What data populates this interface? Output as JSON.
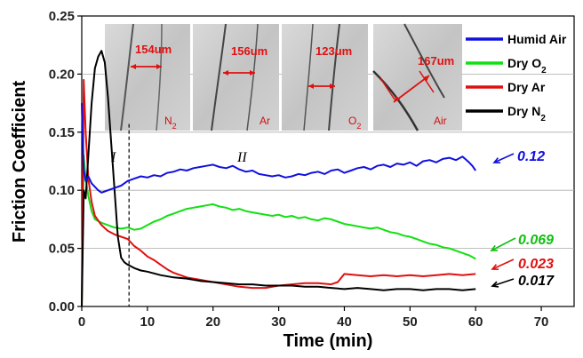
{
  "chart_data": {
    "type": "line",
    "xlabel": "Time (min)",
    "ylabel": "Friction Coefficient",
    "xlim": [
      0,
      75
    ],
    "ylim": [
      0,
      0.25
    ],
    "x_ticks": [
      "0",
      "10",
      "20",
      "30",
      "40",
      "50",
      "60",
      "70"
    ],
    "y_ticks": [
      "0.00",
      "0.05",
      "0.10",
      "0.15",
      "0.20",
      "0.25"
    ],
    "grid": "horizontal",
    "legend_position": "top-right",
    "series": [
      {
        "name": "Humid Air",
        "color": "#1010e0",
        "x": [
          0,
          0.3,
          0.6,
          1,
          1.5,
          2,
          2.5,
          3,
          3.5,
          4,
          5,
          6,
          7,
          8,
          9,
          10,
          11,
          12,
          13,
          14,
          15,
          16,
          17,
          18,
          19,
          20,
          21,
          22,
          23,
          24,
          25,
          26,
          27,
          28,
          29,
          30,
          31,
          32,
          33,
          34,
          35,
          36,
          37,
          38,
          39,
          40,
          41,
          42,
          43,
          44,
          45,
          46,
          47,
          48,
          49,
          50,
          51,
          52,
          53,
          54,
          55,
          56,
          57,
          58,
          59,
          59.5,
          60
        ],
        "values": [
          0.175,
          0.118,
          0.108,
          0.112,
          0.106,
          0.103,
          0.1,
          0.098,
          0.099,
          0.1,
          0.102,
          0.104,
          0.108,
          0.11,
          0.112,
          0.111,
          0.113,
          0.112,
          0.115,
          0.116,
          0.118,
          0.117,
          0.119,
          0.12,
          0.121,
          0.122,
          0.12,
          0.119,
          0.121,
          0.118,
          0.116,
          0.117,
          0.114,
          0.113,
          0.112,
          0.113,
          0.111,
          0.112,
          0.114,
          0.113,
          0.115,
          0.116,
          0.114,
          0.117,
          0.118,
          0.115,
          0.117,
          0.119,
          0.12,
          0.118,
          0.121,
          0.122,
          0.12,
          0.123,
          0.122,
          0.124,
          0.121,
          0.125,
          0.126,
          0.124,
          0.127,
          0.128,
          0.126,
          0.129,
          0.124,
          0.121,
          0.117
        ]
      },
      {
        "name": "Dry O2",
        "color": "#10e010",
        "x": [
          0,
          0.3,
          0.6,
          1,
          1.5,
          2,
          3,
          4,
          5,
          6,
          7,
          8,
          9,
          10,
          11,
          12,
          13,
          14,
          15,
          16,
          17,
          18,
          19,
          20,
          21,
          22,
          23,
          24,
          25,
          26,
          27,
          28,
          29,
          30,
          31,
          32,
          33,
          34,
          35,
          36,
          37,
          38,
          39,
          40,
          41,
          42,
          43,
          44,
          45,
          46,
          47,
          48,
          49,
          50,
          51,
          52,
          53,
          54,
          55,
          56,
          57,
          58,
          59,
          60
        ],
        "values": [
          0.0,
          0.13,
          0.11,
          0.095,
          0.082,
          0.075,
          0.072,
          0.07,
          0.068,
          0.067,
          0.068,
          0.066,
          0.067,
          0.07,
          0.073,
          0.075,
          0.078,
          0.08,
          0.082,
          0.084,
          0.085,
          0.086,
          0.087,
          0.088,
          0.086,
          0.085,
          0.083,
          0.084,
          0.082,
          0.081,
          0.08,
          0.079,
          0.078,
          0.079,
          0.077,
          0.078,
          0.076,
          0.077,
          0.075,
          0.074,
          0.076,
          0.075,
          0.073,
          0.071,
          0.07,
          0.069,
          0.068,
          0.067,
          0.068,
          0.066,
          0.064,
          0.063,
          0.061,
          0.06,
          0.058,
          0.056,
          0.054,
          0.053,
          0.051,
          0.05,
          0.048,
          0.046,
          0.044,
          0.041
        ]
      },
      {
        "name": "Dry Ar",
        "color": "#e01010",
        "x": [
          0,
          0.3,
          0.6,
          1,
          1.5,
          2,
          3,
          4,
          5,
          6,
          7,
          8,
          9,
          10,
          11,
          12,
          13,
          14,
          15,
          16,
          17,
          18,
          19,
          20,
          22,
          24,
          26,
          28,
          30,
          32,
          34,
          36,
          38,
          39,
          40,
          42,
          44,
          46,
          48,
          50,
          52,
          54,
          56,
          58,
          60
        ],
        "values": [
          0.0,
          0.195,
          0.15,
          0.11,
          0.09,
          0.078,
          0.07,
          0.065,
          0.062,
          0.06,
          0.058,
          0.052,
          0.048,
          0.043,
          0.04,
          0.036,
          0.032,
          0.029,
          0.027,
          0.025,
          0.024,
          0.023,
          0.022,
          0.021,
          0.019,
          0.017,
          0.016,
          0.016,
          0.018,
          0.019,
          0.02,
          0.02,
          0.019,
          0.021,
          0.028,
          0.027,
          0.026,
          0.027,
          0.026,
          0.027,
          0.026,
          0.027,
          0.028,
          0.027,
          0.028
        ]
      },
      {
        "name": "Dry N2",
        "color": "#000000",
        "x": [
          0,
          0.3,
          0.6,
          1,
          1.5,
          2,
          2.5,
          3,
          3.5,
          4,
          4.5,
          5,
          5.5,
          6,
          6.5,
          7,
          8,
          9,
          10,
          12,
          14,
          16,
          18,
          20,
          22,
          24,
          26,
          28,
          30,
          32,
          34,
          36,
          38,
          40,
          42,
          44,
          46,
          48,
          50,
          52,
          54,
          56,
          58,
          60
        ],
        "values": [
          0.0,
          0.1,
          0.093,
          0.13,
          0.175,
          0.205,
          0.215,
          0.22,
          0.21,
          0.18,
          0.14,
          0.1,
          0.06,
          0.042,
          0.038,
          0.036,
          0.033,
          0.031,
          0.03,
          0.027,
          0.025,
          0.024,
          0.022,
          0.021,
          0.02,
          0.019,
          0.019,
          0.018,
          0.018,
          0.018,
          0.017,
          0.017,
          0.016,
          0.015,
          0.016,
          0.015,
          0.014,
          0.015,
          0.015,
          0.014,
          0.015,
          0.015,
          0.014,
          0.015
        ]
      }
    ],
    "annotations": [
      {
        "text": "0.12",
        "color": "#1010e0"
      },
      {
        "text": "0.069",
        "color": "#10c010"
      },
      {
        "text": "0.023",
        "color": "#e01010"
      },
      {
        "text": "0.017",
        "color": "#000000"
      }
    ],
    "regions": [
      {
        "label": "I"
      },
      {
        "label": "II"
      }
    ],
    "divider_x": 7.2
  },
  "micrographs": [
    {
      "width_label": "154um",
      "gas_label": "N2"
    },
    {
      "width_label": "156um",
      "gas_label": "Ar"
    },
    {
      "width_label": "123um",
      "gas_label": "O2"
    },
    {
      "width_label": "167um",
      "gas_label": "Air"
    }
  ]
}
